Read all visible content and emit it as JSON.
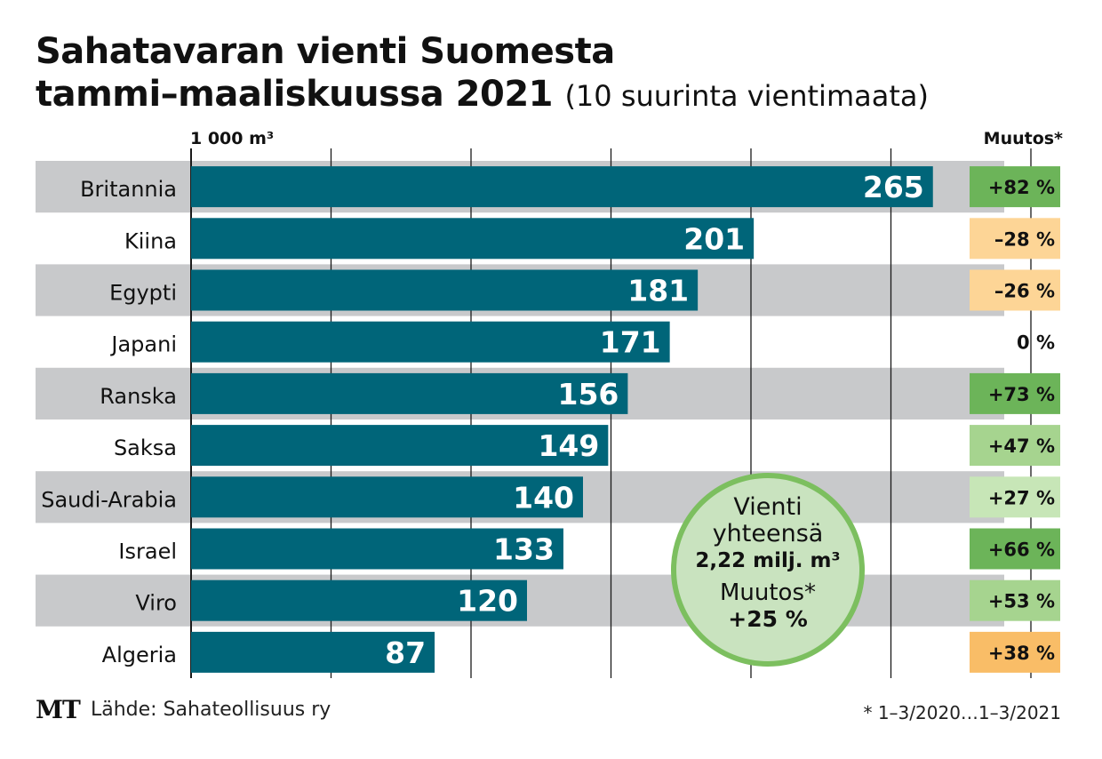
{
  "title": {
    "line1": "Sahatavaran vienti Suomesta",
    "line2": "tammi–maaliskuussa 2021",
    "subtitle": "(10 suurinta vientimaata)"
  },
  "unit_label": "1 000 m³",
  "change_header": "Muutos*",
  "total": {
    "line1": "Vienti",
    "line2": "yhteensä",
    "amount": "2,22 milj. m³",
    "change_label": "Muutos*",
    "change_value": "+25 %"
  },
  "footer": {
    "logo": "MT",
    "source": "Lähde: Sahateollisuus ry",
    "note": "* 1–3/2020…1–3/2021"
  },
  "colors": {
    "bar": "#006579",
    "stripe": "#c8c9cb",
    "green_dark": "#6cb459",
    "green_mid": "#a6d48f",
    "green_light": "#c7e6b7",
    "orange_light": "#fdd596",
    "orange": "#f9bd67"
  },
  "chart_data": {
    "type": "bar",
    "orientation": "horizontal",
    "xlim": [
      0,
      300
    ],
    "grid": true,
    "categories": [
      "Britannia",
      "Kiina",
      "Egypti",
      "Japani",
      "Ranska",
      "Saksa",
      "Saudi-Arabia",
      "Israel",
      "Viro",
      "Algeria"
    ],
    "values": [
      265,
      201,
      181,
      171,
      156,
      149,
      140,
      133,
      120,
      87
    ],
    "changes": [
      {
        "label": "+82 %",
        "color": "green_dark"
      },
      {
        "label": "–28 %",
        "color": "orange_light"
      },
      {
        "label": "–26 %",
        "color": "orange_light"
      },
      {
        "label": "0 %",
        "color": "none"
      },
      {
        "label": "+73 %",
        "color": "green_dark"
      },
      {
        "label": "+47 %",
        "color": "green_mid"
      },
      {
        "label": "+27 %",
        "color": "green_light"
      },
      {
        "label": "+66 %",
        "color": "green_dark"
      },
      {
        "label": "+53 %",
        "color": "green_mid"
      },
      {
        "label": "+38 %",
        "color": "orange"
      }
    ]
  }
}
